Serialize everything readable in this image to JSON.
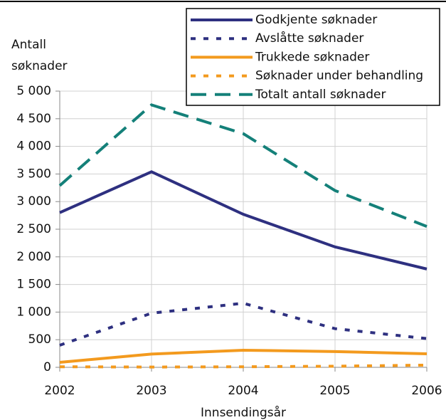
{
  "chart_data": {
    "type": "line",
    "y_label": "Antall søknader",
    "x_label": "Innsendingsår",
    "x": [
      2002,
      2003,
      2004,
      2005,
      2006
    ],
    "xlim": [
      2002,
      2006
    ],
    "xticks": [
      2002,
      2003,
      2004,
      2005,
      2006
    ],
    "ylim": [
      0,
      5000
    ],
    "yticks": [
      0,
      500,
      {
        "value": 1000,
        "label": "1 000"
      },
      {
        "value": 1500,
        "label": "1 500"
      },
      {
        "value": 2000,
        "label": "2 000"
      },
      {
        "value": 2500,
        "label": "2 500"
      },
      {
        "value": 3000,
        "label": "3 000"
      },
      {
        "value": 3500,
        "label": "3 500"
      },
      {
        "value": 4000,
        "label": "4 000"
      },
      {
        "value": 4500,
        "label": "4 500"
      },
      {
        "value": 5000,
        "label": "5 000"
      }
    ],
    "grid": true,
    "legend": "top-right",
    "series": [
      {
        "name": "Godkjente søknader",
        "color": "#2e3080",
        "style": "solid",
        "values": [
          2800,
          3540,
          2770,
          2180,
          1780
        ]
      },
      {
        "name": "Avslåtte søknader",
        "color": "#2e3080",
        "style": "dotted",
        "values": [
          400,
          980,
          1160,
          700,
          520
        ]
      },
      {
        "name": "Trukkede søknader",
        "color": "#f39a1e",
        "style": "solid",
        "values": [
          90,
          240,
          310,
          285,
          245
        ]
      },
      {
        "name": "Søknader under behandling",
        "color": "#f39a1e",
        "style": "dotted",
        "values": [
          10,
          5,
          10,
          20,
          40
        ]
      },
      {
        "name": "Totalt antall søknader",
        "color": "#148079",
        "style": "dashed",
        "values": [
          3290,
          4750,
          4230,
          3200,
          2550
        ]
      }
    ]
  }
}
